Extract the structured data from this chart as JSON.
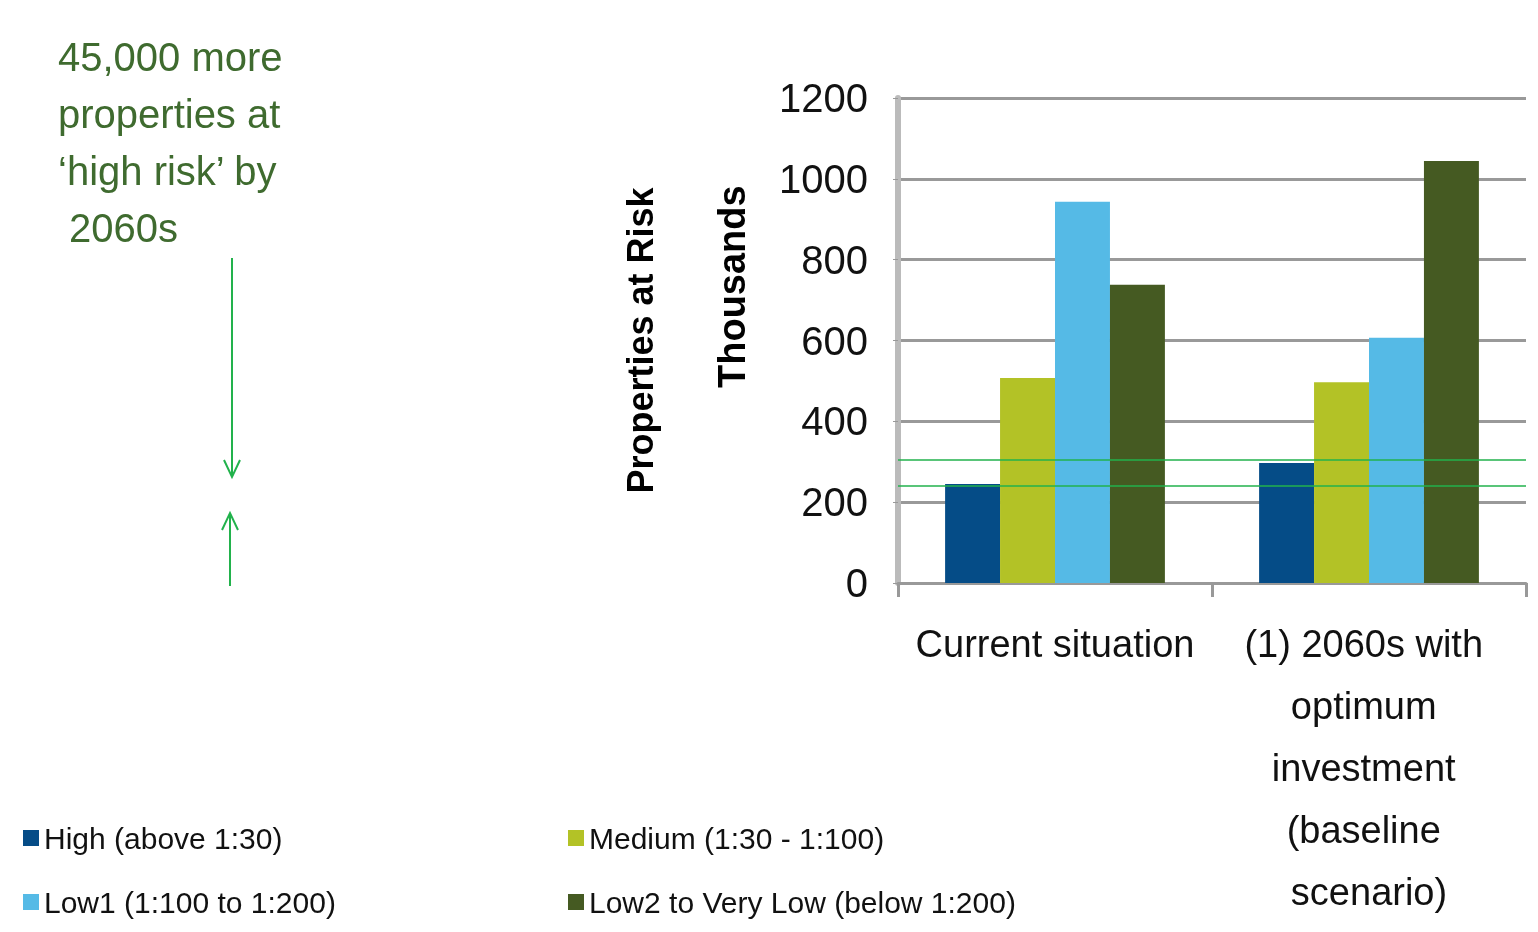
{
  "chart_data": {
    "type": "bar",
    "ylabel": "Properties at Risk",
    "annotations": [
      "45,000 more properties at ‘high risk’ by 2060s",
      "Thousands"
    ],
    "categories": [
      "Current situation",
      "(1) 2060s with optimum investment (baseline scenario)"
    ],
    "series": [
      {
        "name": "High (above 1:30)",
        "color": "#054c87",
        "values": [
          245,
          297
        ]
      },
      {
        "name": "Medium (1:30 - 1:100)",
        "color": "#b3c226",
        "values": [
          507,
          497
        ]
      },
      {
        "name": "Low1 (1:100 to 1:200)",
        "color": "#55bae6",
        "values": [
          943,
          607
        ]
      },
      {
        "name": "Low2 to Very Low (below 1:200)",
        "color": "#455a22",
        "values": [
          738,
          1044
        ]
      }
    ],
    "ylim": [
      0,
      1200
    ],
    "yticks": [
      0,
      200,
      400,
      600,
      800,
      1000,
      1200
    ],
    "grid": "y",
    "legend": "bottom",
    "ref_lines": [
      {
        "axis": "y",
        "value": 305,
        "color": "#22b24c"
      },
      {
        "axis": "y",
        "value": 240,
        "color": "#22b24c"
      }
    ]
  }
}
